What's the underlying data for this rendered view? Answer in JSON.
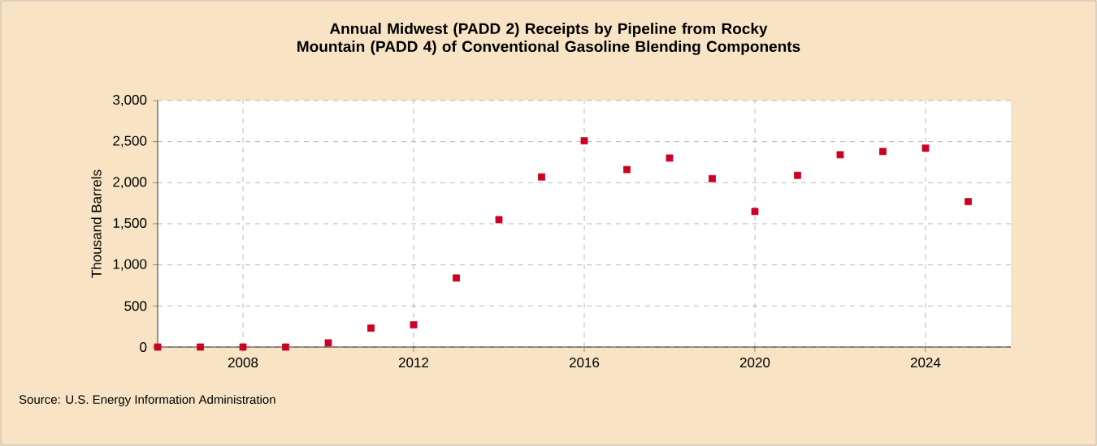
{
  "chart_data": {
    "type": "scatter",
    "title": "Annual Midwest (PADD 2) Receipts by Pipeline from Rocky Mountain (PADD 4) of Conventional Gasoline Blending Components",
    "ylabel": "Thousand Barrels",
    "annotations": [
      "Source: U.S. Energy Information Administration"
    ],
    "x": [
      2006,
      2007,
      2008,
      2009,
      2010,
      2011,
      2012,
      2013,
      2014,
      2015,
      2016,
      2017,
      2018,
      2019,
      2020,
      2021,
      2022,
      2023,
      2024,
      2025
    ],
    "values": [
      0,
      0,
      0,
      0,
      50,
      230,
      270,
      840,
      1550,
      2070,
      2510,
      2160,
      2300,
      2050,
      1650,
      2090,
      2340,
      2380,
      2420,
      1770
    ],
    "color": "#cc0022",
    "marker": "square",
    "xlim": [
      2006,
      2026
    ],
    "xticks": [
      2008,
      2012,
      2016,
      2020,
      2024
    ],
    "ylim": [
      0,
      3000
    ],
    "yticks": [
      {
        "value": 0,
        "label": "0"
      },
      {
        "value": 500,
        "label": "500"
      },
      {
        "value": 1000,
        "label": "1,000"
      },
      {
        "value": 1500,
        "label": "1,500"
      },
      {
        "value": 2000,
        "label": "2,000"
      },
      {
        "value": 2500,
        "label": "2,500"
      },
      {
        "value": 3000,
        "label": "3,000"
      }
    ],
    "grid": true
  }
}
